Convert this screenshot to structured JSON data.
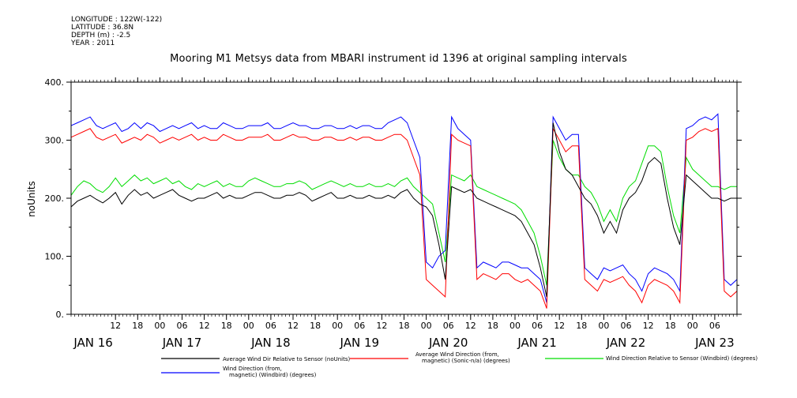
{
  "meta": {
    "longitude": "LONGITUDE : 122W(-122)",
    "latitude": "LATITUDE : 36.8N",
    "depth": "DEPTH (m) : -2.5",
    "year": "YEAR : 2011"
  },
  "chart_data": {
    "type": "line",
    "title": "Mooring M1 Metsys data from MBARI instrument id 1396 at original sampling intervals",
    "ylabel": "noUnits",
    "ylim": [
      0,
      400
    ],
    "yticks": [
      "0.",
      "100.",
      "200.",
      "300.",
      "400."
    ],
    "xlim_hours": [
      -6,
      174
    ],
    "hour_ticks": [
      "12",
      "18",
      "00",
      "06",
      "12",
      "18",
      "00",
      "06",
      "12",
      "18",
      "00",
      "06",
      "12",
      "18",
      "00",
      "06",
      "12",
      "18",
      "00",
      "06",
      "12",
      "18",
      "00",
      "06",
      "12",
      "18",
      "00",
      "06"
    ],
    "day_labels": [
      "JAN 16",
      "JAN 17",
      "JAN 18",
      "JAN 19",
      "JAN 20",
      "JAN 21",
      "JAN 22",
      "JAN 23"
    ],
    "grid": false,
    "legend_position": "bottom",
    "series": [
      {
        "name": "Average Wind Dir Relative to Sensor (noUnits)",
        "color": "#000000",
        "values": [
          185,
          195,
          200,
          205,
          198,
          192,
          200,
          210,
          190,
          205,
          215,
          205,
          210,
          200,
          205,
          210,
          215,
          205,
          200,
          195,
          200,
          200,
          205,
          210,
          200,
          205,
          200,
          200,
          205,
          210,
          210,
          205,
          200,
          200,
          205,
          205,
          210,
          205,
          195,
          200,
          205,
          210,
          200,
          200,
          205,
          200,
          200,
          205,
          200,
          200,
          205,
          200,
          210,
          215,
          200,
          190,
          185,
          170,
          120,
          60,
          220,
          215,
          210,
          215,
          200,
          195,
          190,
          185,
          180,
          175,
          170,
          160,
          140,
          120,
          80,
          30,
          330,
          280,
          250,
          240,
          220,
          200,
          190,
          170,
          140,
          160,
          140,
          180,
          200,
          210,
          230,
          260,
          270,
          260,
          200,
          150,
          120,
          240,
          230,
          220,
          210,
          200,
          200,
          195,
          200,
          200
        ]
      },
      {
        "name": "Average Wind Direction (from, magnetic) (Sonic-n/a) (degrees)",
        "color": "#ff0000",
        "values": [
          305,
          310,
          315,
          320,
          305,
          300,
          305,
          310,
          295,
          300,
          305,
          300,
          310,
          305,
          295,
          300,
          305,
          300,
          305,
          310,
          300,
          305,
          300,
          300,
          310,
          305,
          300,
          300,
          305,
          305,
          305,
          310,
          300,
          300,
          305,
          310,
          305,
          305,
          300,
          300,
          305,
          305,
          300,
          300,
          305,
          300,
          305,
          305,
          300,
          300,
          305,
          310,
          310,
          300,
          270,
          240,
          60,
          50,
          40,
          30,
          310,
          300,
          295,
          290,
          60,
          70,
          65,
          60,
          70,
          70,
          60,
          55,
          60,
          50,
          40,
          10,
          320,
          300,
          280,
          290,
          290,
          60,
          50,
          40,
          60,
          55,
          60,
          65,
          50,
          40,
          20,
          50,
          60,
          55,
          50,
          40,
          20,
          300,
          305,
          315,
          320,
          315,
          320,
          40,
          30,
          40
        ]
      },
      {
        "name": "Wind Direction Relative to Sensor (Windbird) (degrees)",
        "color": "#00dd00",
        "values": [
          205,
          220,
          230,
          225,
          215,
          210,
          220,
          235,
          220,
          230,
          240,
          230,
          235,
          225,
          230,
          235,
          225,
          230,
          220,
          215,
          225,
          220,
          225,
          230,
          220,
          225,
          220,
          220,
          230,
          235,
          230,
          225,
          220,
          220,
          225,
          225,
          230,
          225,
          215,
          220,
          225,
          230,
          225,
          220,
          225,
          220,
          220,
          225,
          220,
          220,
          225,
          220,
          230,
          235,
          220,
          210,
          200,
          190,
          140,
          90,
          240,
          235,
          230,
          240,
          220,
          215,
          210,
          205,
          200,
          195,
          190,
          180,
          160,
          140,
          100,
          50,
          300,
          270,
          250,
          240,
          240,
          220,
          210,
          190,
          160,
          180,
          160,
          200,
          220,
          230,
          260,
          290,
          290,
          280,
          220,
          170,
          140,
          270,
          250,
          240,
          230,
          220,
          220,
          215,
          220,
          220
        ]
      },
      {
        "name": "Wind Direction (from, magnetic) (Windbird) (degrees)",
        "color": "#0000ff",
        "values": [
          325,
          330,
          335,
          340,
          325,
          320,
          325,
          330,
          315,
          320,
          330,
          320,
          330,
          325,
          315,
          320,
          325,
          320,
          325,
          330,
          320,
          325,
          320,
          320,
          330,
          325,
          320,
          320,
          325,
          325,
          325,
          330,
          320,
          320,
          325,
          330,
          325,
          325,
          320,
          320,
          325,
          325,
          320,
          320,
          325,
          320,
          325,
          325,
          320,
          320,
          330,
          335,
          340,
          330,
          300,
          270,
          90,
          80,
          100,
          110,
          340,
          320,
          310,
          300,
          80,
          90,
          85,
          80,
          90,
          90,
          85,
          80,
          80,
          70,
          60,
          20,
          340,
          320,
          300,
          310,
          310,
          80,
          70,
          60,
          80,
          75,
          80,
          85,
          70,
          60,
          40,
          70,
          80,
          75,
          70,
          60,
          40,
          320,
          325,
          335,
          340,
          335,
          345,
          60,
          50,
          60
        ]
      }
    ]
  }
}
